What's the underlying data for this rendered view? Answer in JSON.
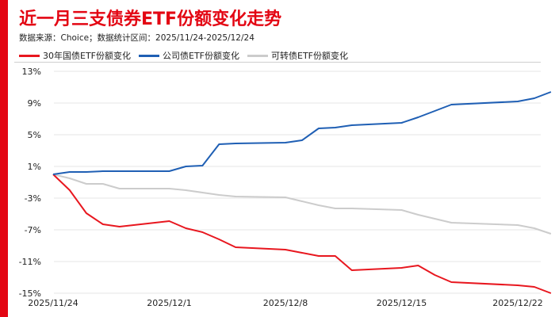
{
  "title": "近一月三支债券ETF份额变化走势",
  "subtitle": "数据来源：Choice；数据统计区间：2025/11/24-2025/12/24",
  "colors": {
    "accent": "#e30613",
    "grid": "#e6e6e6"
  },
  "chart_data": {
    "type": "line",
    "title": "近一月三支债券ETF份额变化走势",
    "xlabel": "",
    "ylabel": "",
    "x_ticks": [
      "2025/11/24",
      "2025/12/1",
      "2025/12/8",
      "2025/12/15",
      "2025/12/22"
    ],
    "y_ticks": [
      "13%",
      "9%",
      "5%",
      "1%",
      "-3%",
      "-7%",
      "-11%",
      "-15%"
    ],
    "ylim": [
      -15,
      13
    ],
    "y_unit": "%",
    "grid": "horizontal",
    "legend_position": "top",
    "series": [
      {
        "name": "30年国债ETF份额变化",
        "color": "#e8171f",
        "points": [
          [
            "2025/11/24",
            0.0
          ],
          [
            "2025/11/25",
            -2.0
          ],
          [
            "2025/11/26",
            -4.9
          ],
          [
            "2025/11/27",
            -6.3
          ],
          [
            "2025/11/28",
            -6.6
          ],
          [
            "2025/12/1",
            -5.9
          ],
          [
            "2025/12/2",
            -6.8
          ],
          [
            "2025/12/3",
            -7.3
          ],
          [
            "2025/12/4",
            -8.2
          ],
          [
            "2025/12/5",
            -9.2
          ],
          [
            "2025/12/8",
            -9.5
          ],
          [
            "2025/12/9",
            -9.9
          ],
          [
            "2025/12/10",
            -10.3
          ],
          [
            "2025/12/11",
            -10.3
          ],
          [
            "2025/12/12",
            -12.1
          ],
          [
            "2025/12/15",
            -11.8
          ],
          [
            "2025/12/16",
            -11.5
          ],
          [
            "2025/12/17",
            -12.7
          ],
          [
            "2025/12/18",
            -13.6
          ],
          [
            "2025/12/22",
            -14.0
          ],
          [
            "2025/12/23",
            -14.2
          ],
          [
            "2025/12/24",
            -15.0
          ]
        ]
      },
      {
        "name": "公司债ETF份额变化",
        "color": "#1f5fb4",
        "points": [
          [
            "2025/11/24",
            0.0
          ],
          [
            "2025/11/25",
            0.3
          ],
          [
            "2025/11/26",
            0.3
          ],
          [
            "2025/11/27",
            0.4
          ],
          [
            "2025/11/28",
            0.4
          ],
          [
            "2025/12/1",
            0.4
          ],
          [
            "2025/12/2",
            1.0
          ],
          [
            "2025/12/3",
            1.1
          ],
          [
            "2025/12/4",
            3.8
          ],
          [
            "2025/12/5",
            3.9
          ],
          [
            "2025/12/8",
            4.0
          ],
          [
            "2025/12/9",
            4.3
          ],
          [
            "2025/12/10",
            5.8
          ],
          [
            "2025/12/11",
            5.9
          ],
          [
            "2025/12/12",
            6.2
          ],
          [
            "2025/12/15",
            6.5
          ],
          [
            "2025/12/16",
            7.2
          ],
          [
            "2025/12/17",
            8.0
          ],
          [
            "2025/12/18",
            8.8
          ],
          [
            "2025/12/22",
            9.2
          ],
          [
            "2025/12/23",
            9.6
          ],
          [
            "2025/12/24",
            10.4
          ]
        ]
      },
      {
        "name": "可转债ETF份额变化",
        "color": "#cccccc",
        "points": [
          [
            "2025/11/24",
            0.0
          ],
          [
            "2025/11/25",
            -0.5
          ],
          [
            "2025/11/26",
            -1.2
          ],
          [
            "2025/11/27",
            -1.2
          ],
          [
            "2025/11/28",
            -1.8
          ],
          [
            "2025/12/1",
            -1.8
          ],
          [
            "2025/12/2",
            -2.0
          ],
          [
            "2025/12/3",
            -2.3
          ],
          [
            "2025/12/4",
            -2.6
          ],
          [
            "2025/12/5",
            -2.8
          ],
          [
            "2025/12/8",
            -2.9
          ],
          [
            "2025/12/9",
            -3.4
          ],
          [
            "2025/12/10",
            -3.9
          ],
          [
            "2025/12/11",
            -4.3
          ],
          [
            "2025/12/12",
            -4.3
          ],
          [
            "2025/12/15",
            -4.5
          ],
          [
            "2025/12/16",
            -5.1
          ],
          [
            "2025/12/17",
            -5.6
          ],
          [
            "2025/12/18",
            -6.1
          ],
          [
            "2025/12/22",
            -6.4
          ],
          [
            "2025/12/23",
            -6.8
          ],
          [
            "2025/12/24",
            -7.5
          ]
        ]
      }
    ]
  }
}
